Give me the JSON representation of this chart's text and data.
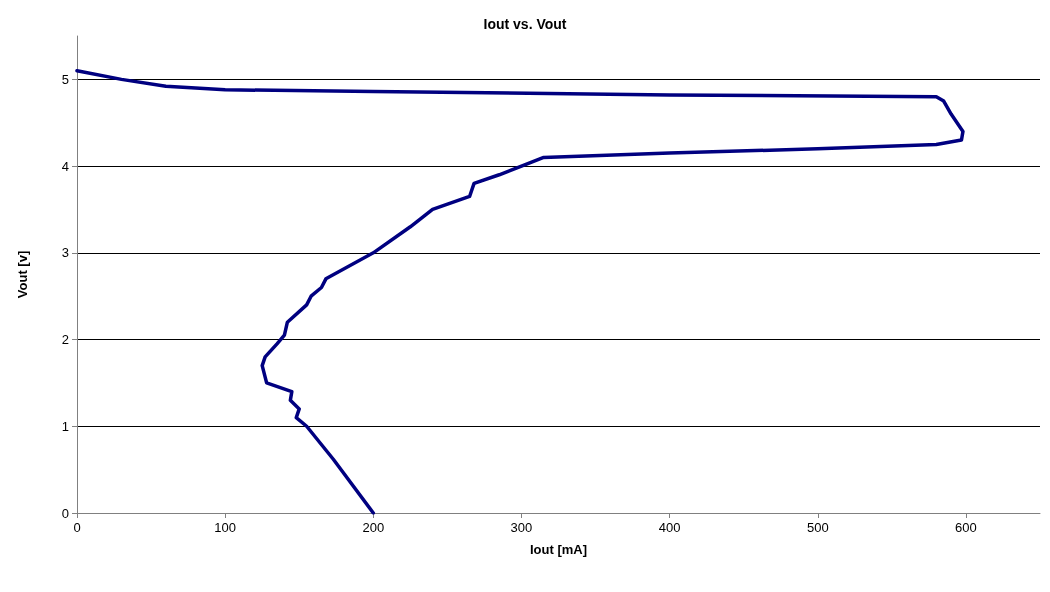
{
  "chart_data": {
    "type": "line",
    "title": "Iout vs. Vout",
    "xlabel": "Iout [mA]",
    "ylabel": "Vout [v]",
    "x": [
      200,
      173,
      155,
      148,
      150,
      144,
      145,
      128,
      125,
      127,
      135,
      140,
      142,
      155,
      158,
      165,
      168,
      200,
      225,
      240,
      265,
      268,
      285,
      300,
      315,
      400,
      500,
      580,
      597,
      598,
      590,
      585,
      580,
      400,
      200,
      100,
      60,
      30,
      0
    ],
    "values": [
      0,
      0.62,
      1.0,
      1.1,
      1.2,
      1.3,
      1.4,
      1.5,
      1.7,
      1.8,
      1.95,
      2.05,
      2.2,
      2.4,
      2.5,
      2.6,
      2.7,
      3.0,
      3.3,
      3.5,
      3.65,
      3.8,
      3.9,
      4.0,
      4.1,
      4.15,
      4.2,
      4.25,
      4.3,
      4.4,
      4.6,
      4.75,
      4.8,
      4.82,
      4.86,
      4.88,
      4.92,
      5.0,
      5.1
    ],
    "color": "#000080",
    "xlim": [
      0,
      650
    ],
    "xticks": [
      0,
      100,
      200,
      300,
      400,
      500,
      600
    ],
    "ylim": [
      0,
      5.5
    ],
    "yticks": [
      0,
      1,
      2,
      3,
      4,
      5
    ],
    "grid": "y",
    "marker": "none",
    "line_style": "solid"
  }
}
